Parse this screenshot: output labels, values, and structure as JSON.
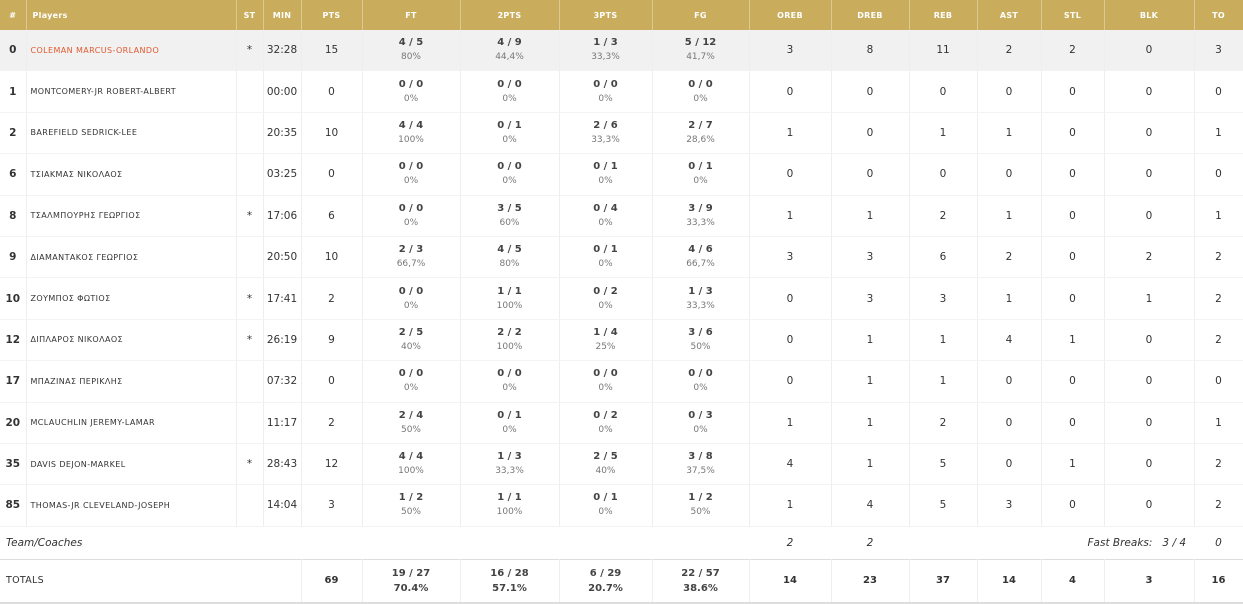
{
  "headers": [
    "#",
    "Players",
    "ST",
    "MIN",
    "PTS",
    "FT",
    "2PTS",
    "3PTS",
    "FG",
    "OREB",
    "DREB",
    "REB",
    "AST",
    "STL",
    "BLK",
    "TO"
  ],
  "players": [
    {
      "num": "0",
      "name": "COLEMAN MARCUS-ORLANDO",
      "st": "*",
      "min": "32:28",
      "pts": "15",
      "ft": "4 / 5",
      "ft_pct": "80%",
      "p2": "4 / 9",
      "p2_pct": "44,4%",
      "p3": "1 / 3",
      "p3_pct": "33,3%",
      "fg": "5 / 12",
      "fg_pct": "41,7%",
      "oreb": "3",
      "dreb": "8",
      "reb": "11",
      "ast": "2",
      "stl": "2",
      "blk": "0",
      "to": "3",
      "highlight": true
    },
    {
      "num": "1",
      "name": "MONTCOMERY-JR ROBERT-ALBERT",
      "st": "",
      "min": "00:00",
      "pts": "0",
      "ft": "0 / 0",
      "ft_pct": "0%",
      "p2": "0 / 0",
      "p2_pct": "0%",
      "p3": "0 / 0",
      "p3_pct": "0%",
      "fg": "0 / 0",
      "fg_pct": "0%",
      "oreb": "0",
      "dreb": "0",
      "reb": "0",
      "ast": "0",
      "stl": "0",
      "blk": "0",
      "to": "0"
    },
    {
      "num": "2",
      "name": "BAREFIELD SEDRICK-LEE",
      "st": "",
      "min": "20:35",
      "pts": "10",
      "ft": "4 / 4",
      "ft_pct": "100%",
      "p2": "0 / 1",
      "p2_pct": "0%",
      "p3": "2 / 6",
      "p3_pct": "33,3%",
      "fg": "2 / 7",
      "fg_pct": "28,6%",
      "oreb": "1",
      "dreb": "0",
      "reb": "1",
      "ast": "1",
      "stl": "0",
      "blk": "0",
      "to": "1"
    },
    {
      "num": "6",
      "name": "ΤΣΙΑΚΜΑΣ ΝΙΚΟΛΑΟΣ",
      "st": "",
      "min": "03:25",
      "pts": "0",
      "ft": "0 / 0",
      "ft_pct": "0%",
      "p2": "0 / 0",
      "p2_pct": "0%",
      "p3": "0 / 1",
      "p3_pct": "0%",
      "fg": "0 / 1",
      "fg_pct": "0%",
      "oreb": "0",
      "dreb": "0",
      "reb": "0",
      "ast": "0",
      "stl": "0",
      "blk": "0",
      "to": "0"
    },
    {
      "num": "8",
      "name": "ΤΣΑΛΜΠΟΥΡΗΣ ΓΕΩΡΓΙΟΣ",
      "st": "*",
      "min": "17:06",
      "pts": "6",
      "ft": "0 / 0",
      "ft_pct": "0%",
      "p2": "3 / 5",
      "p2_pct": "60%",
      "p3": "0 / 4",
      "p3_pct": "0%",
      "fg": "3 / 9",
      "fg_pct": "33,3%",
      "oreb": "1",
      "dreb": "1",
      "reb": "2",
      "ast": "1",
      "stl": "0",
      "blk": "0",
      "to": "1"
    },
    {
      "num": "9",
      "name": "ΔΙΑΜΑΝΤΑΚΟΣ ΓΕΩΡΓΙΟΣ",
      "st": "",
      "min": "20:50",
      "pts": "10",
      "ft": "2 / 3",
      "ft_pct": "66,7%",
      "p2": "4 / 5",
      "p2_pct": "80%",
      "p3": "0 / 1",
      "p3_pct": "0%",
      "fg": "4 / 6",
      "fg_pct": "66,7%",
      "oreb": "3",
      "dreb": "3",
      "reb": "6",
      "ast": "2",
      "stl": "0",
      "blk": "2",
      "to": "2"
    },
    {
      "num": "10",
      "name": "ΖΟΥΜΠΟΣ ΦΩΤΙΟΣ",
      "st": "*",
      "min": "17:41",
      "pts": "2",
      "ft": "0 / 0",
      "ft_pct": "0%",
      "p2": "1 / 1",
      "p2_pct": "100%",
      "p3": "0 / 2",
      "p3_pct": "0%",
      "fg": "1 / 3",
      "fg_pct": "33,3%",
      "oreb": "0",
      "dreb": "3",
      "reb": "3",
      "ast": "1",
      "stl": "0",
      "blk": "1",
      "to": "2"
    },
    {
      "num": "12",
      "name": "ΔΙΠΛΑΡΟΣ ΝΙΚΟΛΑΟΣ",
      "st": "*",
      "min": "26:19",
      "pts": "9",
      "ft": "2 / 5",
      "ft_pct": "40%",
      "p2": "2 / 2",
      "p2_pct": "100%",
      "p3": "1 / 4",
      "p3_pct": "25%",
      "fg": "3 / 6",
      "fg_pct": "50%",
      "oreb": "0",
      "dreb": "1",
      "reb": "1",
      "ast": "4",
      "stl": "1",
      "blk": "0",
      "to": "2"
    },
    {
      "num": "17",
      "name": "ΜΠΑΖΙΝΑΣ ΠΕΡΙΚΛΗΣ",
      "st": "",
      "min": "07:32",
      "pts": "0",
      "ft": "0 / 0",
      "ft_pct": "0%",
      "p2": "0 / 0",
      "p2_pct": "0%",
      "p3": "0 / 0",
      "p3_pct": "0%",
      "fg": "0 / 0",
      "fg_pct": "0%",
      "oreb": "0",
      "dreb": "1",
      "reb": "1",
      "ast": "0",
      "stl": "0",
      "blk": "0",
      "to": "0"
    },
    {
      "num": "20",
      "name": "MCLAUCHLIN JEREMY-LAMAR",
      "st": "",
      "min": "11:17",
      "pts": "2",
      "ft": "2 / 4",
      "ft_pct": "50%",
      "p2": "0 / 1",
      "p2_pct": "0%",
      "p3": "0 / 2",
      "p3_pct": "0%",
      "fg": "0 / 3",
      "fg_pct": "0%",
      "oreb": "1",
      "dreb": "1",
      "reb": "2",
      "ast": "0",
      "stl": "0",
      "blk": "0",
      "to": "1"
    },
    {
      "num": "35",
      "name": "DAVIS DEJON-MARKEL",
      "st": "*",
      "min": "28:43",
      "pts": "12",
      "ft": "4 / 4",
      "ft_pct": "100%",
      "p2": "1 / 3",
      "p2_pct": "33,3%",
      "p3": "2 / 5",
      "p3_pct": "40%",
      "fg": "3 / 8",
      "fg_pct": "37,5%",
      "oreb": "4",
      "dreb": "1",
      "reb": "5",
      "ast": "0",
      "stl": "1",
      "blk": "0",
      "to": "2"
    },
    {
      "num": "85",
      "name": "THOMAS-JR CLEVELAND-JOSEPH",
      "st": "",
      "min": "14:04",
      "pts": "3",
      "ft": "1 / 2",
      "ft_pct": "50%",
      "p2": "1 / 1",
      "p2_pct": "100%",
      "p3": "0 / 1",
      "p3_pct": "0%",
      "fg": "1 / 2",
      "fg_pct": "50%",
      "oreb": "1",
      "dreb": "4",
      "reb": "5",
      "ast": "3",
      "stl": "0",
      "blk": "0",
      "to": "2"
    }
  ],
  "team_row": {
    "label": "Team/Coaches",
    "oreb": "2",
    "dreb": "2",
    "fast_breaks_label": "Fast Breaks:",
    "fast_breaks": "3 / 4",
    "to": "0"
  },
  "totals": {
    "label": "TOTALS",
    "pts": "69",
    "ft": "19 / 27",
    "ft_pct": "70.4%",
    "p2": "16 / 28",
    "p2_pct": "57.1%",
    "p3": "6 / 29",
    "p3_pct": "20.7%",
    "fg": "22 / 57",
    "fg_pct": "38.6%",
    "oreb": "14",
    "dreb": "23",
    "reb": "37",
    "ast": "14",
    "stl": "4",
    "blk": "3",
    "to": "16"
  },
  "colors": {
    "header_bg": "#c9ad5d",
    "highlight_name": "#e05a2e",
    "highlight_row": "#f1f1f1"
  }
}
